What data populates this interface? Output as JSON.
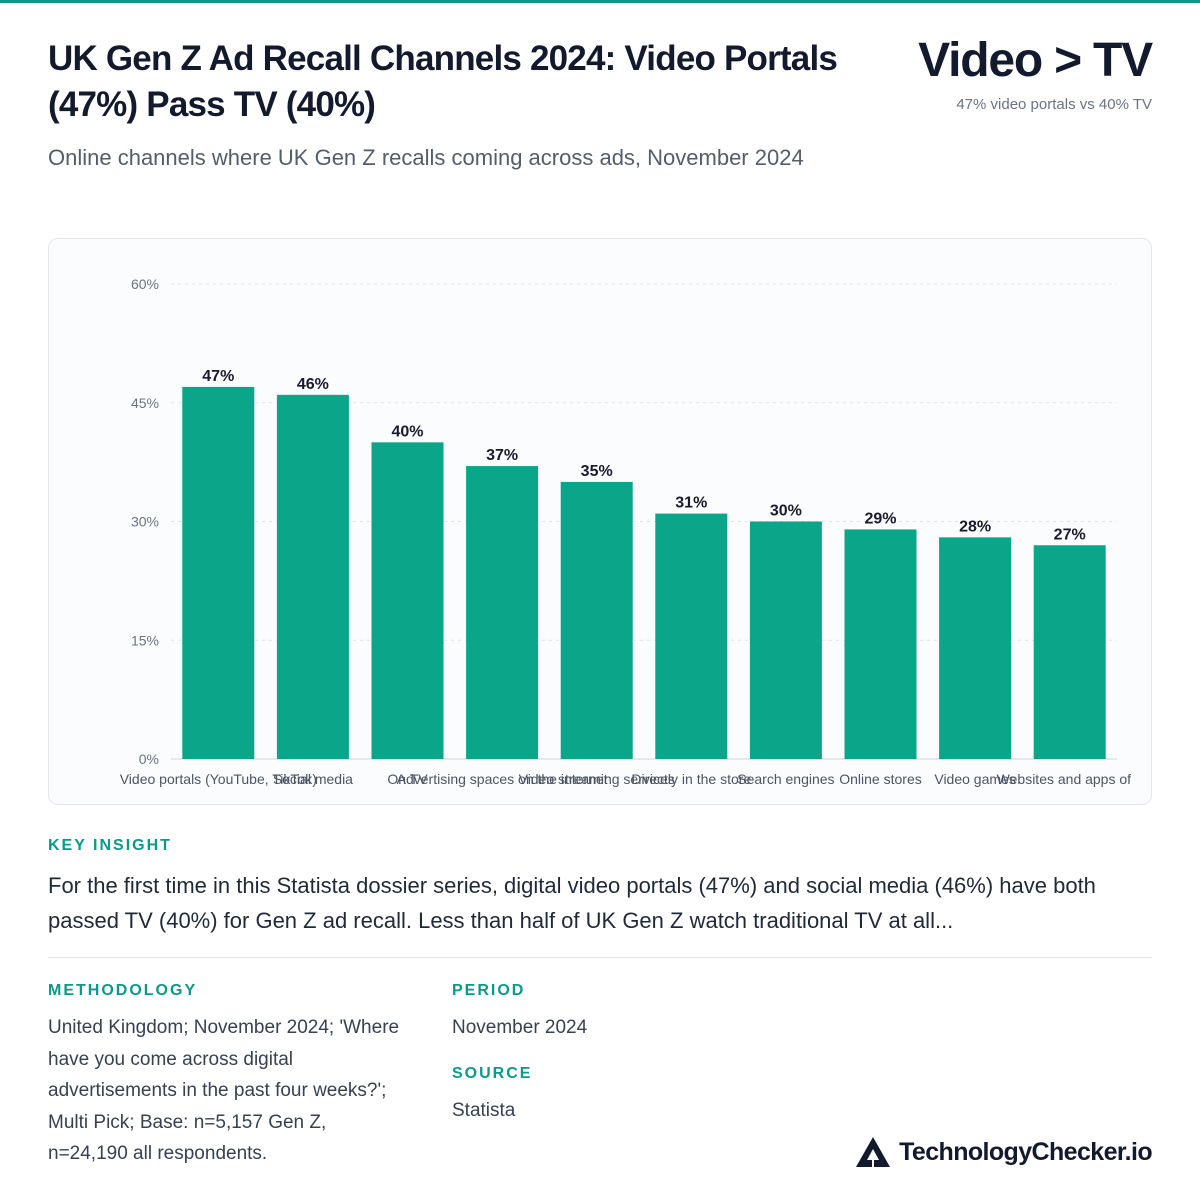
{
  "header": {
    "title": "UK Gen Z Ad Recall Channels 2024: Video Portals (47%) Pass TV (40%)",
    "subtitle": "Online channels where UK Gen Z recalls coming across ads, November 2024",
    "headline": "Video > TV",
    "headline_sub": "47% video portals vs 40% TV"
  },
  "chart_data": {
    "type": "bar",
    "categories": [
      "Video portals (YouTube, TikTok)",
      "Social media",
      "On TV",
      "Advertising spaces on the internet",
      "Video streaming services",
      "Directly in the store",
      "Search engines",
      "Online stores",
      "Video games",
      "Websites and apps of b"
    ],
    "values": [
      47,
      46,
      40,
      37,
      35,
      31,
      30,
      29,
      28,
      27
    ],
    "value_labels": [
      "47%",
      "46%",
      "40%",
      "37%",
      "35%",
      "31%",
      "30%",
      "29%",
      "28%",
      "27%"
    ],
    "yticks": [
      "0%",
      "15%",
      "30%",
      "45%",
      "60%"
    ],
    "ylim": [
      0,
      60
    ],
    "grid": true,
    "bar_color": "#0ba589"
  },
  "insight": {
    "label": "KEY INSIGHT",
    "text": "For the first time in this Statista dossier series, digital video portals (47%) and social media (46%) have both passed TV (40%) for Gen Z ad recall. Less than half of UK Gen Z watch traditional TV at all..."
  },
  "methodology": {
    "label": "METHODOLOGY",
    "text": "United Kingdom; November 2024; 'Where have you come across digital advertisements in the past four weeks?'; Multi Pick; Base: n=5,157 Gen Z, n=24,190 all respondents."
  },
  "period": {
    "label": "PERIOD",
    "text": "November 2024"
  },
  "source": {
    "label": "SOURCE",
    "text": "Statista"
  },
  "brand": {
    "name": "TechnologyChecker.io",
    "icon": "triangle-logo-icon"
  }
}
